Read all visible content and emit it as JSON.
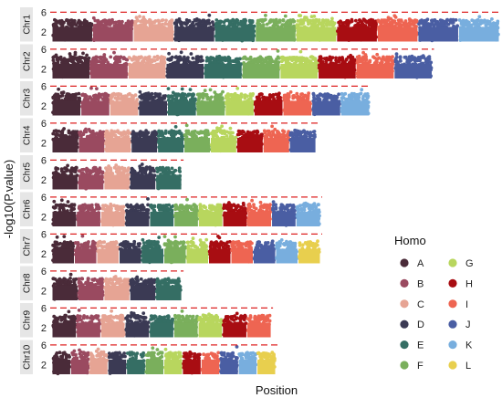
{
  "chart_data": {
    "type": "scatter",
    "subtype": "manhattan",
    "xlabel": "Position",
    "ylabel": "-log10(P.value)",
    "yticks": [
      2,
      6
    ],
    "ylim": [
      0,
      7
    ],
    "threshold": 6,
    "threshold_color": "#dd2222",
    "threshold_style": "dashed",
    "legend": {
      "title": "Homo",
      "placement": "right",
      "entries": [
        {
          "label": "A",
          "color": "#4a2b39"
        },
        {
          "label": "B",
          "color": "#9a4a60"
        },
        {
          "label": "C",
          "color": "#e6a494"
        },
        {
          "label": "D",
          "color": "#3b3a54"
        },
        {
          "label": "E",
          "color": "#356e64"
        },
        {
          "label": "F",
          "color": "#7aaf5c"
        },
        {
          "label": "G",
          "color": "#b8d65e"
        },
        {
          "label": "H",
          "color": "#a80d12"
        },
        {
          "label": "I",
          "color": "#ee6552"
        },
        {
          "label": "J",
          "color": "#4a5ea3"
        },
        {
          "label": "K",
          "color": "#78aede"
        },
        {
          "label": "L",
          "color": "#e8cf4e"
        }
      ]
    },
    "panels": [
      {
        "label": "Chr1",
        "segments": [
          "A",
          "B",
          "C",
          "D",
          "E",
          "F",
          "G",
          "H",
          "I",
          "J",
          "K"
        ],
        "fraction": 1.0
      },
      {
        "label": "Chr2",
        "segments": [
          "A",
          "B",
          "C",
          "D",
          "E",
          "F",
          "G",
          "H",
          "I",
          "J"
        ],
        "fraction": 0.85
      },
      {
        "label": "Chr3",
        "segments": [
          "A",
          "B",
          "C",
          "D",
          "E",
          "F",
          "G",
          "H",
          "I",
          "J",
          "K"
        ],
        "fraction": 0.71
      },
      {
        "label": "Chr4",
        "segments": [
          "A",
          "B",
          "C",
          "D",
          "E",
          "F",
          "G",
          "H",
          "I",
          "J"
        ],
        "fraction": 0.59
      },
      {
        "label": "Chr5",
        "segments": [
          "A",
          "B",
          "C",
          "D",
          "E"
        ],
        "fraction": 0.29
      },
      {
        "label": "Chr6",
        "segments": [
          "A",
          "B",
          "C",
          "D",
          "E",
          "F",
          "G",
          "H",
          "I",
          "J",
          "K"
        ],
        "fraction": 0.6
      },
      {
        "label": "Chr7",
        "segments": [
          "A",
          "B",
          "C",
          "D",
          "E",
          "F",
          "G",
          "H",
          "I",
          "J",
          "K",
          "L"
        ],
        "fraction": 0.6
      },
      {
        "label": "Chr8",
        "segments": [
          "A",
          "B",
          "C",
          "D",
          "E"
        ],
        "fraction": 0.29
      },
      {
        "label": "Chr9",
        "segments": [
          "A",
          "B",
          "C",
          "D",
          "E",
          "F",
          "G",
          "H",
          "I"
        ],
        "fraction": 0.49
      },
      {
        "label": "Chr10",
        "segments": [
          "A",
          "B",
          "C",
          "D",
          "E",
          "F",
          "G",
          "H",
          "I",
          "J",
          "K",
          "L"
        ],
        "fraction": 0.5
      }
    ]
  }
}
